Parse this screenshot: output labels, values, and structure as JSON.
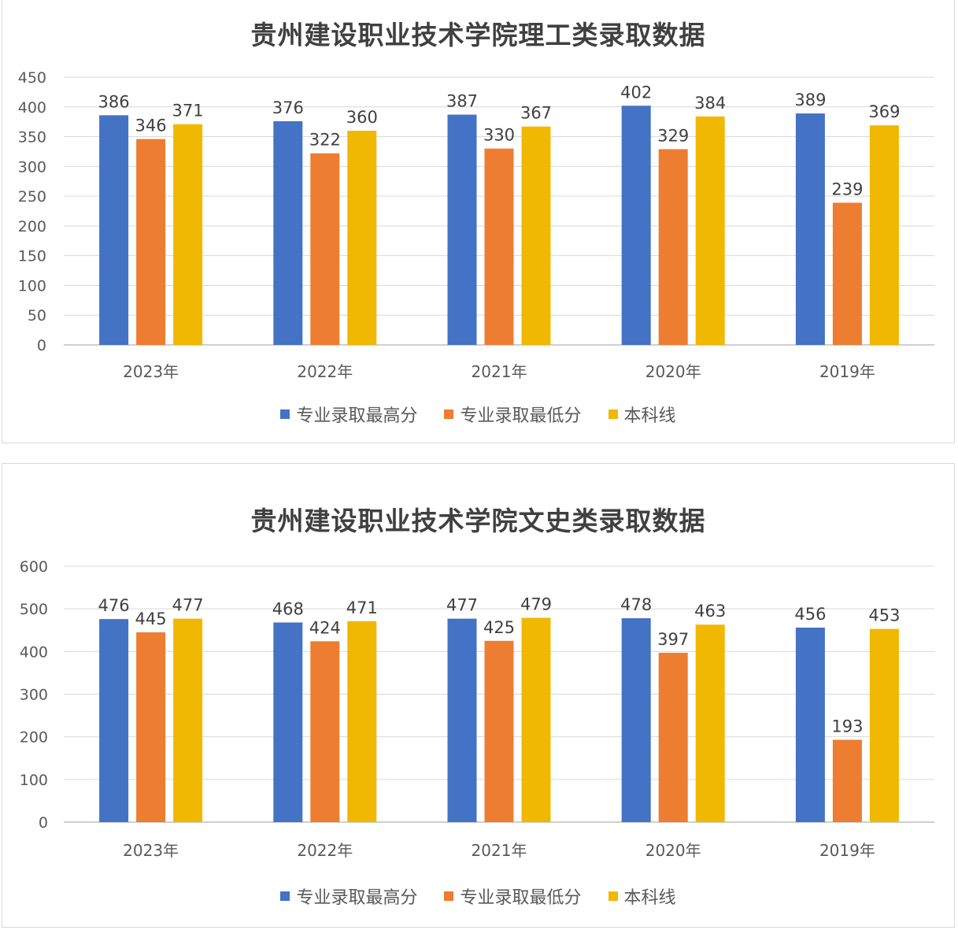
{
  "chart_data": [
    {
      "type": "bar",
      "title": "贵州建设职业技术学院理工类录取数据",
      "categories": [
        "2023年",
        "2022年",
        "2021年",
        "2020年",
        "2019年"
      ],
      "ylim": [
        0,
        450
      ],
      "yticks": [
        0,
        50,
        100,
        150,
        200,
        250,
        300,
        350,
        400,
        450
      ],
      "grid": true,
      "legend_position": "bottom",
      "series": [
        {
          "name": "专业录取最高分",
          "color": "#4472C4",
          "values": [
            386,
            376,
            387,
            402,
            389
          ]
        },
        {
          "name": "专业录取最低分",
          "color": "#ED7D31",
          "values": [
            346,
            322,
            330,
            329,
            239
          ]
        },
        {
          "name": "本科线",
          "color": "#F0B800",
          "values": [
            371,
            360,
            367,
            384,
            369
          ]
        }
      ]
    },
    {
      "type": "bar",
      "title": "贵州建设职业技术学院文史类录取数据",
      "categories": [
        "2023年",
        "2022年",
        "2021年",
        "2020年",
        "2019年"
      ],
      "ylim": [
        0,
        600
      ],
      "yticks": [
        0,
        100,
        200,
        300,
        400,
        500,
        600
      ],
      "grid": true,
      "legend_position": "bottom",
      "series": [
        {
          "name": "专业录取最高分",
          "color": "#4472C4",
          "values": [
            476,
            468,
            477,
            478,
            456
          ]
        },
        {
          "name": "专业录取最低分",
          "color": "#ED7D31",
          "values": [
            445,
            424,
            425,
            397,
            193
          ]
        },
        {
          "name": "本科线",
          "color": "#F0B800",
          "values": [
            477,
            471,
            479,
            463,
            453
          ]
        }
      ]
    }
  ]
}
